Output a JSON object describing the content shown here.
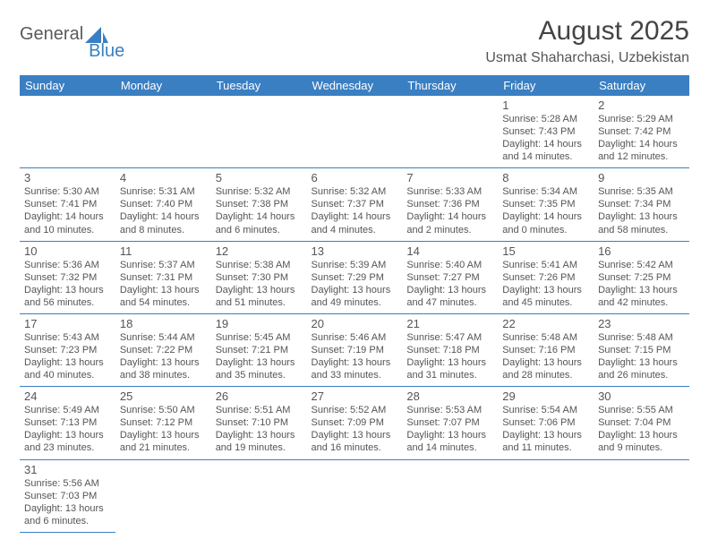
{
  "brand": {
    "part1": "General",
    "part2": "Blue"
  },
  "header": {
    "title": "August 2025",
    "location": "Usmat Shaharchasi, Uzbekistan"
  },
  "colors": {
    "header_bg": "#3a7fc2",
    "header_text": "#ffffff",
    "rule": "#3a7fc2",
    "body_text": "#555555",
    "page_bg": "#ffffff",
    "brand_gray": "#5a5a5a",
    "brand_blue": "#3a7fc2"
  },
  "fonts": {
    "title_pt": 30,
    "subtitle_pt": 16,
    "dayheader_pt": 13,
    "daynum_pt": 13,
    "info_pt": 11
  },
  "weekdays": [
    "Sunday",
    "Monday",
    "Tuesday",
    "Wednesday",
    "Thursday",
    "Friday",
    "Saturday"
  ],
  "days": {
    "1": {
      "sunrise": "Sunrise: 5:28 AM",
      "sunset": "Sunset: 7:43 PM",
      "daylight": "Daylight: 14 hours and 14 minutes."
    },
    "2": {
      "sunrise": "Sunrise: 5:29 AM",
      "sunset": "Sunset: 7:42 PM",
      "daylight": "Daylight: 14 hours and 12 minutes."
    },
    "3": {
      "sunrise": "Sunrise: 5:30 AM",
      "sunset": "Sunset: 7:41 PM",
      "daylight": "Daylight: 14 hours and 10 minutes."
    },
    "4": {
      "sunrise": "Sunrise: 5:31 AM",
      "sunset": "Sunset: 7:40 PM",
      "daylight": "Daylight: 14 hours and 8 minutes."
    },
    "5": {
      "sunrise": "Sunrise: 5:32 AM",
      "sunset": "Sunset: 7:38 PM",
      "daylight": "Daylight: 14 hours and 6 minutes."
    },
    "6": {
      "sunrise": "Sunrise: 5:32 AM",
      "sunset": "Sunset: 7:37 PM",
      "daylight": "Daylight: 14 hours and 4 minutes."
    },
    "7": {
      "sunrise": "Sunrise: 5:33 AM",
      "sunset": "Sunset: 7:36 PM",
      "daylight": "Daylight: 14 hours and 2 minutes."
    },
    "8": {
      "sunrise": "Sunrise: 5:34 AM",
      "sunset": "Sunset: 7:35 PM",
      "daylight": "Daylight: 14 hours and 0 minutes."
    },
    "9": {
      "sunrise": "Sunrise: 5:35 AM",
      "sunset": "Sunset: 7:34 PM",
      "daylight": "Daylight: 13 hours and 58 minutes."
    },
    "10": {
      "sunrise": "Sunrise: 5:36 AM",
      "sunset": "Sunset: 7:32 PM",
      "daylight": "Daylight: 13 hours and 56 minutes."
    },
    "11": {
      "sunrise": "Sunrise: 5:37 AM",
      "sunset": "Sunset: 7:31 PM",
      "daylight": "Daylight: 13 hours and 54 minutes."
    },
    "12": {
      "sunrise": "Sunrise: 5:38 AM",
      "sunset": "Sunset: 7:30 PM",
      "daylight": "Daylight: 13 hours and 51 minutes."
    },
    "13": {
      "sunrise": "Sunrise: 5:39 AM",
      "sunset": "Sunset: 7:29 PM",
      "daylight": "Daylight: 13 hours and 49 minutes."
    },
    "14": {
      "sunrise": "Sunrise: 5:40 AM",
      "sunset": "Sunset: 7:27 PM",
      "daylight": "Daylight: 13 hours and 47 minutes."
    },
    "15": {
      "sunrise": "Sunrise: 5:41 AM",
      "sunset": "Sunset: 7:26 PM",
      "daylight": "Daylight: 13 hours and 45 minutes."
    },
    "16": {
      "sunrise": "Sunrise: 5:42 AM",
      "sunset": "Sunset: 7:25 PM",
      "daylight": "Daylight: 13 hours and 42 minutes."
    },
    "17": {
      "sunrise": "Sunrise: 5:43 AM",
      "sunset": "Sunset: 7:23 PM",
      "daylight": "Daylight: 13 hours and 40 minutes."
    },
    "18": {
      "sunrise": "Sunrise: 5:44 AM",
      "sunset": "Sunset: 7:22 PM",
      "daylight": "Daylight: 13 hours and 38 minutes."
    },
    "19": {
      "sunrise": "Sunrise: 5:45 AM",
      "sunset": "Sunset: 7:21 PM",
      "daylight": "Daylight: 13 hours and 35 minutes."
    },
    "20": {
      "sunrise": "Sunrise: 5:46 AM",
      "sunset": "Sunset: 7:19 PM",
      "daylight": "Daylight: 13 hours and 33 minutes."
    },
    "21": {
      "sunrise": "Sunrise: 5:47 AM",
      "sunset": "Sunset: 7:18 PM",
      "daylight": "Daylight: 13 hours and 31 minutes."
    },
    "22": {
      "sunrise": "Sunrise: 5:48 AM",
      "sunset": "Sunset: 7:16 PM",
      "daylight": "Daylight: 13 hours and 28 minutes."
    },
    "23": {
      "sunrise": "Sunrise: 5:48 AM",
      "sunset": "Sunset: 7:15 PM",
      "daylight": "Daylight: 13 hours and 26 minutes."
    },
    "24": {
      "sunrise": "Sunrise: 5:49 AM",
      "sunset": "Sunset: 7:13 PM",
      "daylight": "Daylight: 13 hours and 23 minutes."
    },
    "25": {
      "sunrise": "Sunrise: 5:50 AM",
      "sunset": "Sunset: 7:12 PM",
      "daylight": "Daylight: 13 hours and 21 minutes."
    },
    "26": {
      "sunrise": "Sunrise: 5:51 AM",
      "sunset": "Sunset: 7:10 PM",
      "daylight": "Daylight: 13 hours and 19 minutes."
    },
    "27": {
      "sunrise": "Sunrise: 5:52 AM",
      "sunset": "Sunset: 7:09 PM",
      "daylight": "Daylight: 13 hours and 16 minutes."
    },
    "28": {
      "sunrise": "Sunrise: 5:53 AM",
      "sunset": "Sunset: 7:07 PM",
      "daylight": "Daylight: 13 hours and 14 minutes."
    },
    "29": {
      "sunrise": "Sunrise: 5:54 AM",
      "sunset": "Sunset: 7:06 PM",
      "daylight": "Daylight: 13 hours and 11 minutes."
    },
    "30": {
      "sunrise": "Sunrise: 5:55 AM",
      "sunset": "Sunset: 7:04 PM",
      "daylight": "Daylight: 13 hours and 9 minutes."
    },
    "31": {
      "sunrise": "Sunrise: 5:56 AM",
      "sunset": "Sunset: 7:03 PM",
      "daylight": "Daylight: 13 hours and 6 minutes."
    }
  },
  "grid": [
    [
      null,
      null,
      null,
      null,
      null,
      "1",
      "2"
    ],
    [
      "3",
      "4",
      "5",
      "6",
      "7",
      "8",
      "9"
    ],
    [
      "10",
      "11",
      "12",
      "13",
      "14",
      "15",
      "16"
    ],
    [
      "17",
      "18",
      "19",
      "20",
      "21",
      "22",
      "23"
    ],
    [
      "24",
      "25",
      "26",
      "27",
      "28",
      "29",
      "30"
    ],
    [
      "31",
      null,
      null,
      null,
      null,
      null,
      null
    ]
  ]
}
